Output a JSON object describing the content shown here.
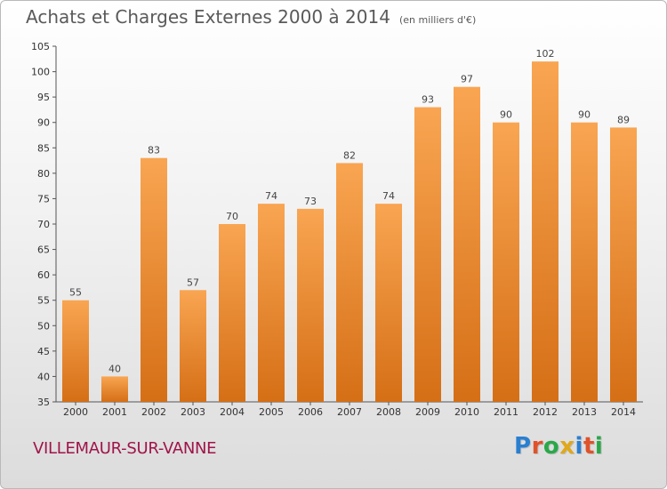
{
  "title": "Achats et Charges Externes 2000 à 2014",
  "unit": "(en milliers d'€)",
  "location": "VILLEMAUR-SUR-VANNE",
  "brand": "Proxiti",
  "colors": {
    "bar_top": "#f9a552",
    "bar_bottom": "#d56f16",
    "city": "#a0144a"
  },
  "chart_data": {
    "type": "bar",
    "title": "Achats et Charges Externes 2000 à 2014",
    "subtitle": "(en milliers d'€)",
    "categories": [
      "2000",
      "2001",
      "2002",
      "2003",
      "2004",
      "2005",
      "2006",
      "2007",
      "2008",
      "2009",
      "2010",
      "2011",
      "2012",
      "2013",
      "2014"
    ],
    "values": [
      55,
      40,
      83,
      57,
      70,
      74,
      73,
      82,
      74,
      93,
      97,
      90,
      102,
      90,
      89
    ],
    "ylim": [
      35,
      105
    ],
    "yticks": [
      35,
      40,
      45,
      50,
      55,
      60,
      65,
      70,
      75,
      80,
      85,
      90,
      95,
      100,
      105
    ],
    "grid": false,
    "data_labels": true
  }
}
